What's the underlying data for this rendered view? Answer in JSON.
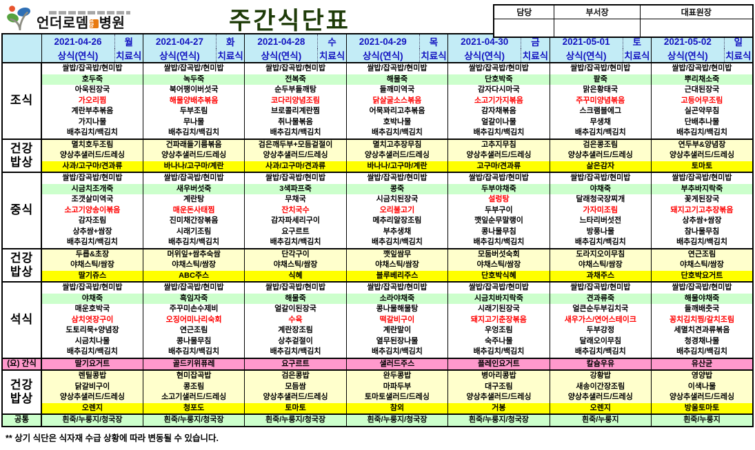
{
  "page": {
    "title": "주간식단표",
    "footnote": "** 상기 식단은 식자재 수급 상황에 따라 변동될 수 있습니다.",
    "colors": {
      "header_bg": "#c3ecf6",
      "header_text": "#1313c0",
      "title_text": "#1e3b08",
      "porridge_band": "#ccffcc",
      "healthy_band": "#ffffcc",
      "fruit_band": "#ffff00",
      "snack_band": "#ff99cc",
      "common_band": "#ccffcc",
      "special_item_text": "#ff0000",
      "logo_badge_bg": "#e87a10"
    }
  },
  "logo": {
    "name_main": "언더로뎀",
    "badge": "요양",
    "name_suffix": "병원"
  },
  "approval": {
    "labels": [
      "담당",
      "부서장",
      "대표원장"
    ]
  },
  "table": {
    "days": [
      {
        "date": "2021-04-26",
        "weekday": "월"
      },
      {
        "date": "2021-04-27",
        "weekday": "화"
      },
      {
        "date": "2021-04-28",
        "weekday": "수"
      },
      {
        "date": "2021-04-29",
        "weekday": "목"
      },
      {
        "date": "2021-04-30",
        "weekday": "금"
      },
      {
        "date": "2021-05-01",
        "weekday": "토"
      },
      {
        "date": "2021-05-02",
        "weekday": "일"
      }
    ],
    "subheader": {
      "left": "상식(연식)",
      "right": "치료식"
    },
    "sections": [
      {
        "id": "breakfast",
        "label_lines": [
          "조식"
        ],
        "label_size": "lg",
        "label_bg": "",
        "rows": [
          {
            "cells": [
              "쌀밥/잡곡밥/현미밥",
              "쌀밥/잡곡밥/현미밥",
              "쌀밥/잡곡밥/현미밥",
              "쌀밥/잡곡밥/현미밥",
              "쌀밥/잡곡밥/현미밥",
              "쌀밥/잡곡밥/현미밥",
              "쌀밥/잡곡밥/현미밥"
            ]
          },
          {
            "bg": "green",
            "cells": [
              "호두죽",
              "녹두죽",
              "전복죽",
              "해물죽",
              "단호박죽",
              "팥죽",
              "뿌리채소죽"
            ]
          },
          {
            "cells": [
              "아욱된장국",
              "북어팽이버섯국",
              "순두부들깨탕",
              "들깨미역국",
              "감자다시마국",
              "맑은황태국",
              "근대된장국"
            ]
          },
          {
            "cells": [
              {
                "t": "가오리찜",
                "red": true
              },
              {
                "t": "해물양배추볶음",
                "red": true
              },
              {
                "t": "코다리양념조림",
                "red": true
              },
              {
                "t": "닭살굴소스볶음",
                "red": true
              },
              {
                "t": "소고기가지볶음",
                "red": true
              },
              {
                "t": "주꾸미양념볶음",
                "red": true
              },
              {
                "t": "고등어무조림",
                "red": true
              }
            ]
          },
          {
            "cells": [
              "계란부추볶음",
              "두부조림",
              "브로콜리계란찜",
              "어묵꽈리고추볶음",
              "감자채볶음",
              "스크램블에그",
              "실곤약무침"
            ]
          },
          {
            "cells": [
              "가지나물",
              "무나물",
              "취나물볶음",
              "호박나물",
              "얼갈이나물",
              "무생채",
              "단배추나물"
            ]
          },
          {
            "cells": [
              "배추김치/백김치",
              "배추김치/백김치",
              "배추김치/백김치",
              "배추김치/백김치",
              "배추김치/백김치",
              "배추김치/백김치",
              "배추김치/백김치"
            ]
          }
        ]
      },
      {
        "id": "healthy-1",
        "label_lines": [
          "건강",
          "밥상"
        ],
        "label_size": "lg",
        "label_bg": "",
        "rows": [
          {
            "bg": "cream",
            "cells": [
              "멸치호두조림",
              "건파래들기름볶음",
              "검은깨두부+모듬겉절이",
              "멸치고추장무침",
              "고추지무침",
              "검은콩조림",
              "연두부&양념장"
            ]
          },
          {
            "bg": "cream",
            "cells": [
              "양상추샐러드/드레싱",
              "양상추샐러드/드레싱",
              "양상추샐러드/드레싱",
              "양상추샐러드/드레싱",
              "양상추샐러드/드레싱",
              "양상추샐러드/드레싱",
              "양상추샐러드/드레싱"
            ]
          },
          {
            "bg": "yellow",
            "cells": [
              "사과/고구마/견과류",
              "바나나/고구마/계란",
              "사과/고구마/견과류",
              "바나나/고구마/계란",
              "고구마/견과류",
              "삶은감자",
              "토마토"
            ]
          }
        ]
      },
      {
        "id": "lunch",
        "label_lines": [
          "중식"
        ],
        "label_size": "lg",
        "label_bg": "",
        "rows": [
          {
            "cells": [
              "쌀밥/잡곡밥/현미밥",
              "쌀밥/잡곡밥/현미밥",
              "쌀밥/잡곡밥/현미밥",
              "쌀밥/잡곡밥/현미밥",
              "쌀밥/잡곡밥/현미밥",
              "쌀밥/잡곡밥/현미밥",
              "쌀밥/잡곡밥/현미밥"
            ]
          },
          {
            "bg": "green",
            "cells": [
              "시금치조개죽",
              "새우버섯죽",
              "3색파프죽",
              "콩죽",
              "두부야채죽",
              "야채죽",
              "부추바지락죽"
            ]
          },
          {
            "cells": [
              "조갯살미역국",
              "계란탕",
              "무채국",
              "시금치된장국",
              {
                "t": "설렁탕",
                "red": true
              },
              "달래청국장찌개",
              "꽃게된장국"
            ]
          },
          {
            "cells": [
              {
                "t": "소고기양송이볶음",
                "red": true
              },
              {
                "t": "매운돈사태찜",
                "red": true
              },
              {
                "t": "잔치국수",
                "red": true
              },
              {
                "t": "오리불고기",
                "red": true
              },
              "두부구이",
              {
                "t": "가자미조림",
                "red": true
              },
              {
                "t": "돼지고기고추장볶음",
                "red": true
              }
            ]
          },
          {
            "cells": [
              "감자조림",
              "진미채간장볶음",
              "감자파세리구이",
              "메추리알장조림",
              "깻잎순무말랭이",
              "느타리버섯전",
              "상추쌈+쌈장"
            ]
          },
          {
            "cells": [
              "상추쌈+쌈장",
              "시래기조림",
              "요구르트",
              "부추생채",
              "콩나물무침",
              "방풍나물",
              "참나물무침"
            ]
          },
          {
            "cells": [
              "배추김치/백김치",
              "배추김치/백김치",
              "배추김치/백김치",
              "배추김치/백김치",
              "배추김치/백김치",
              "배추김치/백김치",
              "배추김치/백김치"
            ]
          }
        ]
      },
      {
        "id": "healthy-2",
        "label_lines": [
          "건강",
          "밥상"
        ],
        "label_size": "lg",
        "label_bg": "",
        "rows": [
          {
            "bg": "cream",
            "cells": [
              "두릅&초장",
              "머위잎+쌈추숙쌈",
              "단각구이",
              "깻잎쌈무",
              "모둠버섯숙회",
              "도라지오이무침",
              "연근조림"
            ]
          },
          {
            "bg": "cream",
            "cells": [
              "야채스틱/쌈장",
              "야채스틱/쌈장",
              "야채스틱/쌈장",
              "야채스틱/쌈장",
              "야채스틱/쌈장",
              "야채스틱/쌈장",
              "야채스틱/쌈장"
            ]
          },
          {
            "bg": "yellow",
            "cells": [
              "딸기쥬스",
              "ABC주스",
              "식혜",
              "블루베리주스",
              "단호박식혜",
              "과채주스",
              "단호박요거트"
            ]
          }
        ]
      },
      {
        "id": "dinner",
        "label_lines": [
          "석식"
        ],
        "label_size": "lg",
        "label_bg": "",
        "rows": [
          {
            "cells": [
              "쌀밥/잡곡밥/현미밥",
              "쌀밥/잡곡밥/현미밥",
              "쌀밥/잡곡밥/현미밥",
              "쌀밥/잡곡밥/현미밥",
              "쌀밥/잡곡밥/현미밥",
              "쌀밥/잡곡밥/현미밥",
              "쌀밥/잡곡밥/현미밥"
            ]
          },
          {
            "bg": "green",
            "cells": [
              "야채죽",
              "흑임자죽",
              "해물죽",
              "소라야채죽",
              "시금치바지락죽",
              "견과류죽",
              "해물야채죽"
            ]
          },
          {
            "cells": [
              "매운호박국",
              "주꾸미손수제비",
              "얼갈이된장국",
              "콩나물해물탕",
              "시래기된장국",
              "얼큰순두부김치국",
              "들깨배춧국"
            ]
          },
          {
            "cells": [
              {
                "t": "삼치엿장구이",
                "red": true
              },
              {
                "t": "오징어미나리숙회",
                "red": true
              },
              {
                "t": "수육",
                "red": true
              },
              {
                "t": "떡갈비구이",
                "red": true
              },
              {
                "t": "돼지고기춘장볶음",
                "red": true
              },
              {
                "t": "새우가스/연어스테이크",
                "red": true
              },
              {
                "t": "꽁치김치찜/갈치조림",
                "red": true
              }
            ]
          },
          {
            "cells": [
              "도토리묵+양념장",
              "연근조림",
              "계란장조림",
              "계란말이",
              "우엉조림",
              "두부강정",
              "세멸치견과류볶음"
            ]
          },
          {
            "cells": [
              "시금치나물",
              "콩나물무침",
              "상추겉절이",
              "열무된장나물",
              "숙주나물",
              "달래오이무침",
              "청경채나물"
            ]
          },
          {
            "cells": [
              "배추김치/백김치",
              "배추김치/백김치",
              "배추김치/백김치",
              "배추김치/백김치",
              "배추김치/백김치",
              "배추김치/백김치",
              "배추김치/백김치"
            ]
          }
        ]
      },
      {
        "id": "snack",
        "label_lines": [
          "(요) 간식"
        ],
        "label_size": "sm",
        "label_bg": "pink",
        "rows": [
          {
            "bg": "pink",
            "cells": [
              "딸기요거트",
              "골드키위퓨레",
              "요구르트",
              "샐러드주스",
              "플레인요거트",
              "칼슘우유",
              "유산균"
            ]
          }
        ]
      },
      {
        "id": "healthy-3",
        "label_lines": [
          "건강",
          "밥상"
        ],
        "label_size": "lg",
        "label_bg": "",
        "rows": [
          {
            "bg": "cream",
            "cells": [
              "렌틸콩밥",
              "현미잡곡밥",
              "검은콩밥",
              "완두콩밥",
              "병아리콩밥",
              "강황밥",
              "영양밥"
            ]
          },
          {
            "bg": "cream",
            "cells": [
              "닭갈비구이",
              "콩조림",
              "모듬쌈",
              "마파두부",
              "대구조림",
              "새송이간장조림",
              "이색나물"
            ]
          },
          {
            "bg": "cream",
            "cells": [
              "양상추샐러드/드레싱",
              "소고기샐러드/드레싱",
              "양상추샐러드/드레싱",
              "토마토샐러드/드레싱",
              "양상추샐러드/드레싱",
              "양상추샐러드/드레싱",
              "양상추샐러드/드레싱"
            ]
          },
          {
            "bg": "yellow",
            "cells": [
              "오렌지",
              "청포도",
              "토마토",
              "참외",
              "거봉",
              "오렌지",
              "방울토마토"
            ]
          }
        ]
      },
      {
        "id": "common",
        "label_lines": [
          "공통"
        ],
        "label_size": "sm",
        "label_bg": "mint",
        "rows": [
          {
            "bg": "mint",
            "cells": [
              "흰죽/누룽지/청국장",
              "흰죽/누룽지/청국장",
              "흰죽/누룽지/청국장",
              "흰죽/누룽지/청국장",
              "흰죽/누룽지/청국장",
              "흰죽/누룽지",
              "흰죽/누룽지"
            ]
          }
        ]
      }
    ]
  }
}
